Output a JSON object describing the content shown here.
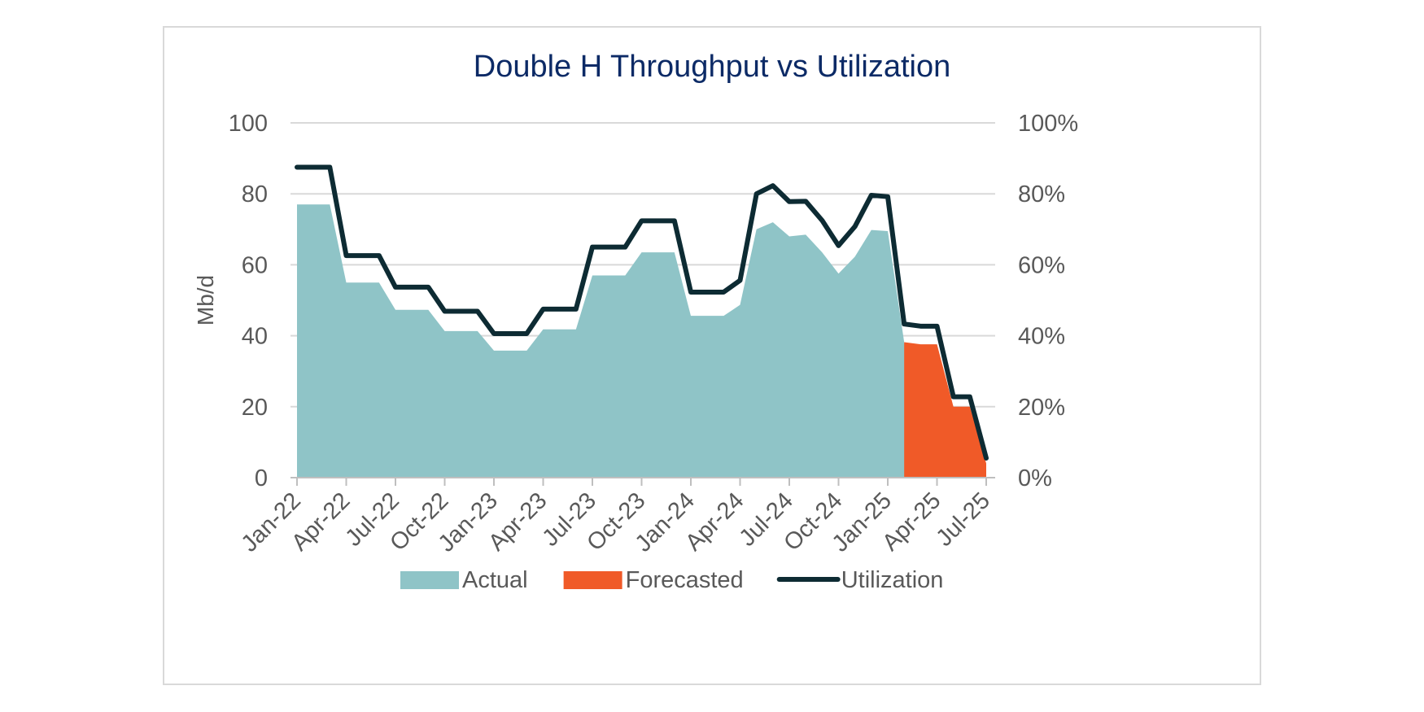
{
  "chart_data": {
    "type": "area",
    "title": "Double H Throughput vs Utilization",
    "ylabel": "Mb/d",
    "y2label": "",
    "ylim": [
      0,
      100
    ],
    "y2lim": [
      0,
      1
    ],
    "yticks": [
      "0",
      "20",
      "40",
      "60",
      "80",
      "100"
    ],
    "y2ticks": [
      "0%",
      "20%",
      "40%",
      "60%",
      "80%",
      "100%"
    ],
    "x_tick_labels": [
      "Jan-22",
      "Apr-22",
      "Jul-22",
      "Oct-22",
      "Jan-23",
      "Apr-23",
      "Jul-23",
      "Oct-23",
      "Jan-24",
      "Apr-24",
      "Jul-24",
      "Oct-24",
      "Jan-25",
      "Apr-25",
      "Jul-25"
    ],
    "x": [
      "Jan-22",
      "Feb-22",
      "Mar-22",
      "Apr-22",
      "May-22",
      "Jun-22",
      "Jul-22",
      "Aug-22",
      "Sep-22",
      "Oct-22",
      "Nov-22",
      "Dec-22",
      "Jan-23",
      "Feb-23",
      "Mar-23",
      "Apr-23",
      "May-23",
      "Jun-23",
      "Jul-23",
      "Aug-23",
      "Sep-23",
      "Oct-23",
      "Nov-23",
      "Dec-23",
      "Jan-24",
      "Feb-24",
      "Mar-24",
      "Apr-24",
      "May-24",
      "Jun-24",
      "Jul-24",
      "Aug-24",
      "Sep-24",
      "Oct-24",
      "Nov-24",
      "Dec-24",
      "Jan-25",
      "Feb-25",
      "Mar-25",
      "Apr-25",
      "May-25",
      "Jun-25",
      "Jul-25"
    ],
    "grid": true,
    "legend_position": "bottom",
    "series": [
      {
        "name": "Actual",
        "type": "area",
        "axis": "left",
        "color": "#8fc4c7",
        "values": [
          77,
          77,
          77,
          55,
          55,
          55,
          47.3,
          47.3,
          47.3,
          41.3,
          41.3,
          41.3,
          35.8,
          35.8,
          35.8,
          41.8,
          41.8,
          41.8,
          57,
          57,
          57,
          63.5,
          63.5,
          63.5,
          45.6,
          45.6,
          45.6,
          48.7,
          70,
          72,
          68,
          68.5,
          63.5,
          57.5,
          62.3,
          69.8,
          69.5,
          38.2,
          null,
          null,
          null,
          null,
          null
        ]
      },
      {
        "name": "Forecasted",
        "type": "area",
        "axis": "left",
        "color": "#f05a28",
        "values": [
          null,
          null,
          null,
          null,
          null,
          null,
          null,
          null,
          null,
          null,
          null,
          null,
          null,
          null,
          null,
          null,
          null,
          null,
          null,
          null,
          null,
          null,
          null,
          null,
          null,
          null,
          null,
          null,
          null,
          null,
          null,
          null,
          null,
          null,
          null,
          null,
          null,
          38.2,
          37.6,
          37.6,
          20,
          20,
          4
        ]
      },
      {
        "name": "Utilization",
        "type": "line",
        "axis": "right",
        "color": "#0d2b33",
        "values": [
          0.875,
          0.875,
          0.875,
          0.626,
          0.626,
          0.626,
          0.537,
          0.537,
          0.537,
          0.469,
          0.469,
          0.469,
          0.406,
          0.406,
          0.406,
          0.475,
          0.475,
          0.475,
          0.65,
          0.65,
          0.65,
          0.724,
          0.724,
          0.724,
          0.523,
          0.523,
          0.523,
          0.556,
          0.8,
          0.823,
          0.778,
          0.779,
          0.725,
          0.654,
          0.708,
          0.796,
          0.792,
          0.433,
          0.427,
          0.427,
          0.228,
          0.228,
          0.055
        ]
      }
    ]
  }
}
